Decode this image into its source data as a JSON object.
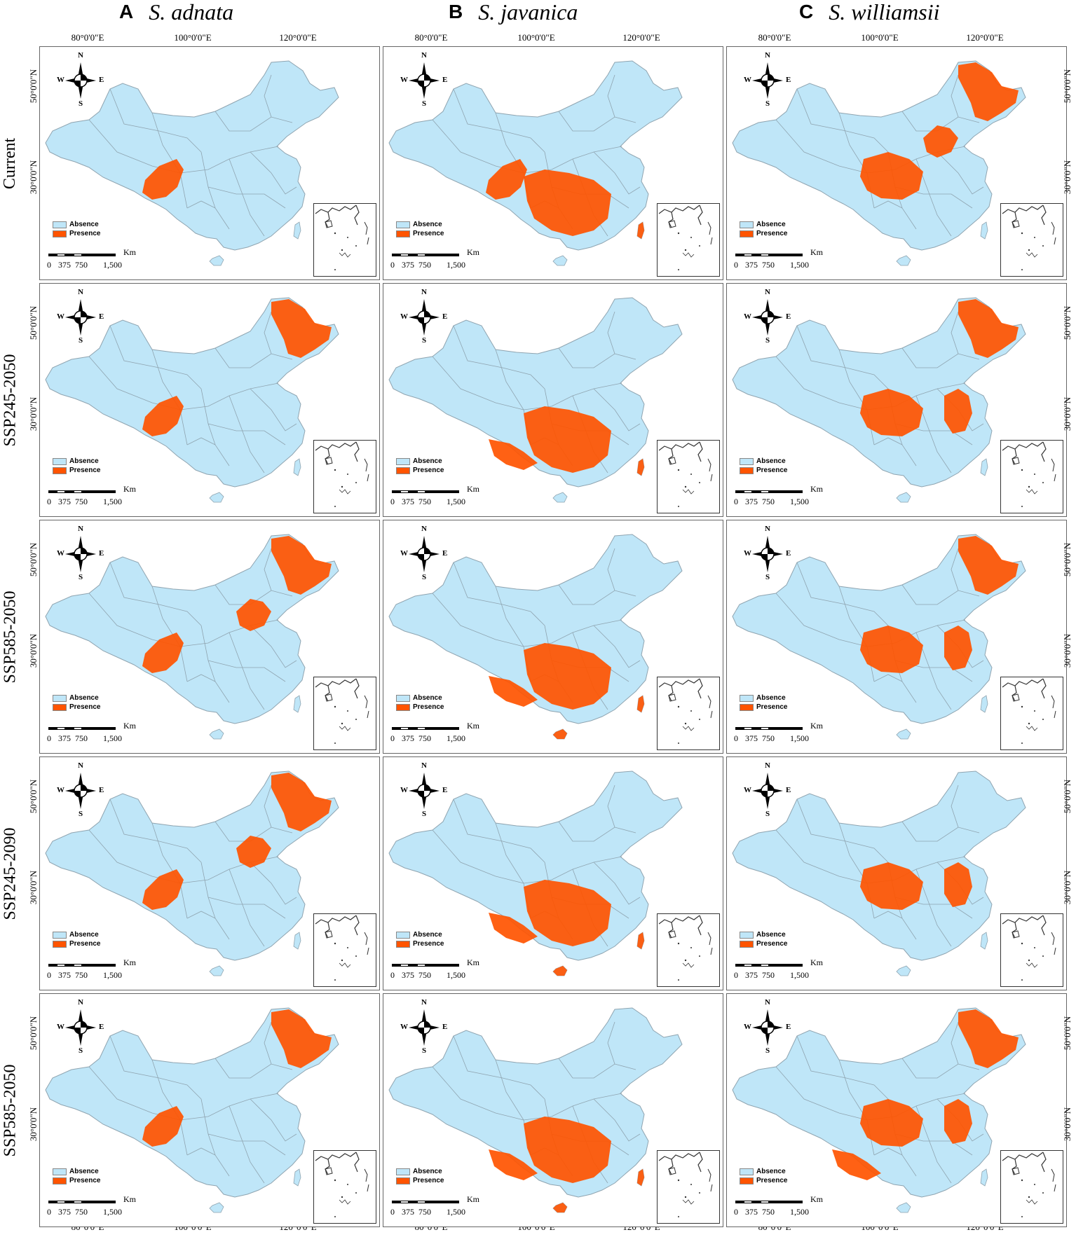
{
  "columns": [
    {
      "letter": "A",
      "species": "S. adnata"
    },
    {
      "letter": "B",
      "species": "S. javanica"
    },
    {
      "letter": "C",
      "species": "S. williamsii"
    }
  ],
  "rows": [
    "Current",
    "SSP245-2050",
    "SSP585-2050",
    "SSP245-2090",
    "SSP585-2050"
  ],
  "longitude_labels": [
    "80°0'0\"E",
    "100°0'0\"E",
    "120°0'0\"E"
  ],
  "latitude_labels": [
    "50°0'0\"N",
    "30°0'0\"N"
  ],
  "legend": {
    "absence": "Absence",
    "presence": "Presence"
  },
  "colors": {
    "absence": "#bfe6f8",
    "presence": "#ff5400",
    "border": "#8fa4b0"
  },
  "compass": {
    "n": "N",
    "s": "S",
    "e": "E",
    "w": "W"
  },
  "scale_bar": {
    "unit": "Km",
    "labels": [
      "0",
      "375",
      "750",
      "1,500"
    ]
  },
  "suitability": {
    "columns": [
      "S. adnata",
      "S. javanica",
      "S. williamsii"
    ],
    "rows": [
      "Current",
      "SSP245-2050",
      "SSP585-2050",
      "SSP245-2090",
      "SSP585-2050"
    ],
    "presence_regions": [
      [
        [
          "southwest"
        ],
        [
          "southwest",
          "northeast"
        ],
        [
          "southwest",
          "northeast",
          "north"
        ],
        [
          "southwest",
          "northeast",
          "north"
        ],
        [
          "southwest",
          "northeast"
        ]
      ],
      [
        [
          "southwest",
          "south-central",
          "taiwan"
        ],
        [
          "south",
          "south-central",
          "taiwan"
        ],
        [
          "south",
          "south-central",
          "hainan",
          "taiwan"
        ],
        [
          "south",
          "south-central",
          "hainan",
          "taiwan"
        ],
        [
          "south",
          "south-central",
          "hainan",
          "taiwan"
        ]
      ],
      [
        [
          "central",
          "north",
          "northeast"
        ],
        [
          "central",
          "northeast",
          "east"
        ],
        [
          "central",
          "northeast",
          "east"
        ],
        [
          "central",
          "east"
        ],
        [
          "central",
          "east",
          "northeast",
          "south"
        ]
      ]
    ]
  }
}
